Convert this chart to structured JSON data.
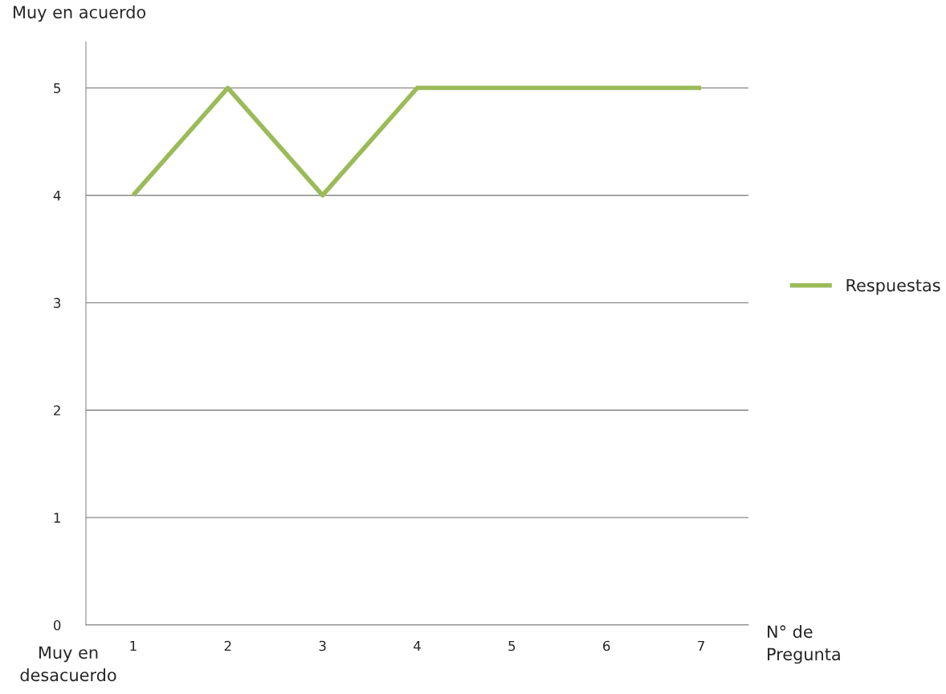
{
  "chart_data": {
    "type": "line",
    "categories": [
      "1",
      "2",
      "3",
      "4",
      "5",
      "6",
      "7"
    ],
    "series": [
      {
        "name": "Respuestas",
        "color": "#9bbb59",
        "values": [
          4,
          5,
          4,
          5,
          5,
          5,
          5
        ]
      }
    ],
    "ylabel": "Muy en acuerdo",
    "xlabel": "N° de\nPregunta",
    "annotations": [
      "Muy en\ndesacuerdo"
    ],
    "ylim": [
      0,
      5.43
    ],
    "yticks": [
      0,
      1,
      2,
      3,
      4,
      5
    ],
    "grid": "y",
    "legend": "right",
    "marker": "none",
    "line_style": "solid"
  }
}
